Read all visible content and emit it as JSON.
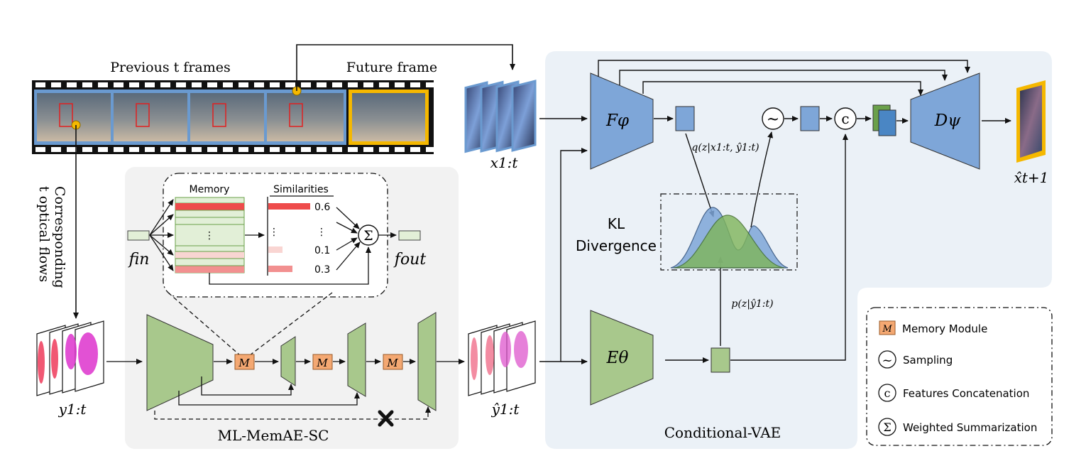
{
  "film": {
    "previous_label": "Previous t frames",
    "future_label": "Future frame"
  },
  "inputs": {
    "x_label": "x1:t",
    "flows_label_line1": "Corresponding",
    "flows_label_line2": "t optical flows",
    "y_label": "y1:t",
    "y_hat_label": "ŷ1:t",
    "x_hat_label": "x̂t+1"
  },
  "memory_detail": {
    "memory_header": "Memory",
    "similarities_header": "Similarities",
    "values": [
      "0.6",
      "0.1",
      "0.3"
    ],
    "ellipsis_v": "⋮",
    "ellipsis_h": "⋮",
    "f_in": "fin",
    "f_out": "fout",
    "sum_symbol": "Σ"
  },
  "memae": {
    "module_letter": "M",
    "title": "ML-MemAE-SC"
  },
  "cvae": {
    "title": "Conditional-VAE",
    "encoder_f": "Fφ",
    "decoder_d": "Dψ",
    "encoder_e": "Eθ",
    "q_label": "q(z|x1:t, ŷ1:t)",
    "p_label": "p(z|ŷ1:t)",
    "kl_line1": "KL",
    "kl_line2": "Divergence",
    "sampling_symbol": "~",
    "concat_symbol": "c"
  },
  "legend": {
    "items": [
      {
        "symbol": "M",
        "label": "Memory Module"
      },
      {
        "symbol": "~",
        "label": "Sampling"
      },
      {
        "symbol": "c",
        "label": "Features Concatenation"
      },
      {
        "symbol": "Σ",
        "label": "Weighted Summarization"
      }
    ]
  },
  "colors": {
    "blue_fill": "#7ea6d8",
    "green_fill": "#a8c88c",
    "orange_fill": "#f4a872",
    "frame_border_blue": "#6a9ad0",
    "frame_border_orange": "#f5b800",
    "red_bar": "#ee4b4b"
  }
}
